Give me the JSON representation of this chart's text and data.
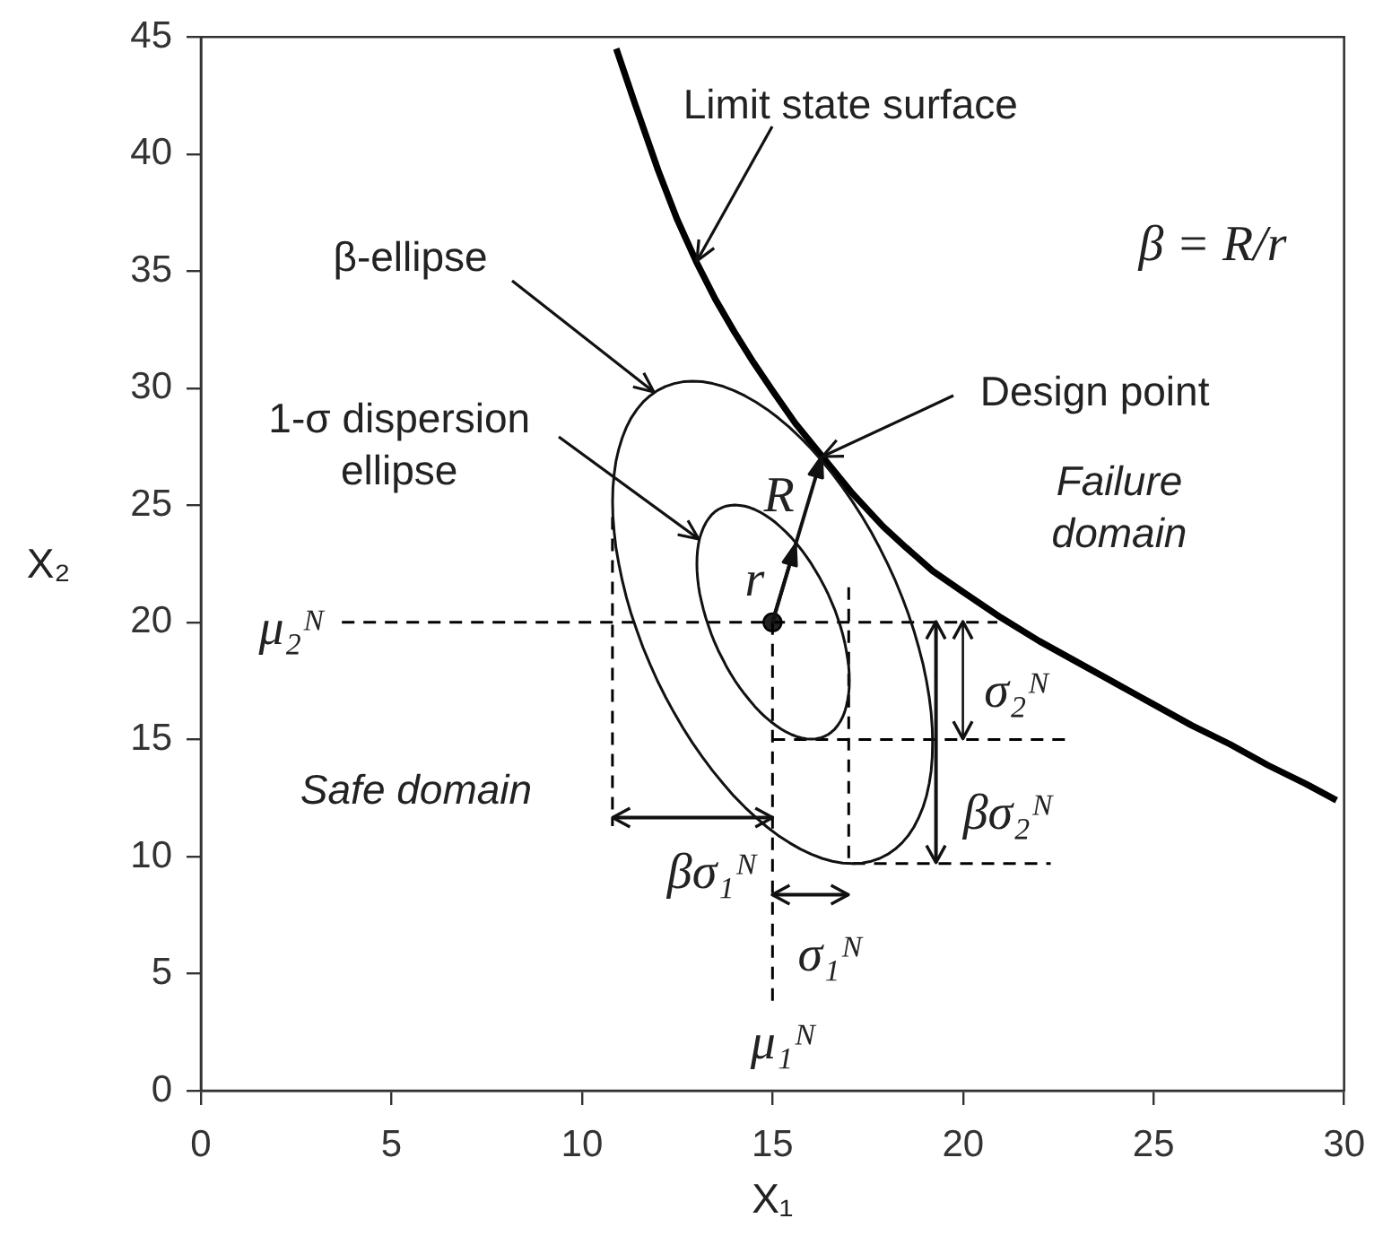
{
  "chart_data": {
    "type": "line",
    "xlabel": "X₁",
    "ylabel": "X₂",
    "xlim": [
      0,
      30
    ],
    "ylim": [
      0,
      45
    ],
    "xticks": [
      0,
      5,
      10,
      15,
      20,
      25,
      30
    ],
    "yticks": [
      0,
      5,
      10,
      15,
      20,
      25,
      30,
      35,
      40,
      45
    ],
    "series": [
      {
        "color": "#000000",
        "x": [
          10.9,
          11.4,
          12.0,
          12.5,
          13.0,
          13.5,
          14.0,
          14.5,
          15.0,
          15.6,
          16.3,
          17.1,
          17.9,
          18.5,
          19.2,
          20.0,
          21.0,
          22.0,
          23.0,
          24.0,
          25.0,
          26.0,
          27.0,
          28.0,
          29.0,
          29.8
        ],
        "values": [
          44.5,
          42.1,
          39.3,
          37.2,
          35.4,
          33.8,
          32.4,
          31.1,
          29.9,
          28.5,
          27.1,
          25.5,
          24.1,
          23.2,
          22.2,
          21.3,
          20.2,
          19.2,
          18.3,
          17.4,
          16.5,
          15.6,
          14.8,
          13.9,
          13.1,
          12.4
        ]
      },
      {
        "name": "μ₂ᴺ",
        "color": "#000000",
        "line_style": "dashed",
        "x": [
          3.7,
          20.9
        ],
        "values": [
          20,
          20
        ]
      },
      {
        "name": "μ₁ᴺ",
        "color": "#000000",
        "line_style": "dashed",
        "x": [
          15,
          15
        ],
        "values": [
          20,
          3.7
        ]
      },
      {
        "color": "#000000",
        "line_style": "dashed",
        "x": [
          15,
          22.8
        ],
        "values": [
          15,
          15
        ]
      },
      {
        "color": "#000000",
        "line_style": "dashed",
        "x": [
          17.1,
          22.3
        ],
        "values": [
          9.7,
          9.7
        ]
      },
      {
        "color": "#000000",
        "line_style": "dashed",
        "x": [
          17,
          17
        ],
        "values": [
          21.5,
          9.7
        ]
      },
      {
        "color": "#000000",
        "line_style": "dashed",
        "x": [
          10.8,
          10.8
        ],
        "values": [
          24.5,
          11.3
        ]
      },
      {
        "type": "scatter",
        "color": "#222222",
        "marker": "circle",
        "x": [
          15
        ],
        "values": [
          20
        ]
      }
    ],
    "annotations": [
      {
        "text": "Limit state surface",
        "x": 13.0,
        "y": 35.4
      },
      "β-ellipse",
      "1-σ dispersion ellipse",
      {
        "text": "Design point",
        "x": 16.3,
        "y": 27.1
      },
      {
        "text": "R",
        "x": 16.3,
        "y": 27.1
      },
      "r",
      "Failure domain",
      "Safe domain",
      "β = R/r",
      {
        "text": "βσ₁ᴺ",
        "x": 10.8,
        "y": 11.7
      },
      {
        "text": "σ₁ᴺ",
        "x": 15,
        "y": 8.4
      },
      {
        "text": "σ₂ᴺ",
        "x": 20,
        "y": 15
      },
      {
        "text": "βσ₂ᴺ",
        "x": 19.3,
        "y": 9.7
      }
    ]
  }
}
